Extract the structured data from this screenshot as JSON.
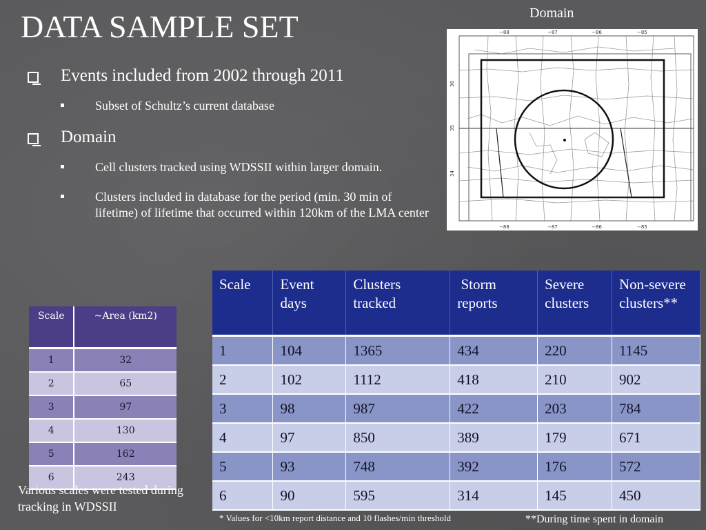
{
  "title": "DATA SAMPLE SET",
  "bullets": {
    "b1": "Events included from 2002 through 2011",
    "b1_sub": "Subset of Schultz’s current database",
    "b2": "Domain",
    "b2_sub1": "Cell clusters tracked using WDSSII within larger domain.",
    "b2_sub2": "Clusters included in database for the period (min. 30 min of lifetime) of  lifetime that occurred within 120km of the LMA center"
  },
  "map": {
    "caption": "Domain",
    "lon_ticks": [
      "−88",
      "−87",
      "−86",
      "−85"
    ],
    "lat_ticks": [
      "36",
      "35",
      "34"
    ]
  },
  "scale_table": {
    "headers": [
      "Scale",
      "~Area (km2)"
    ],
    "rows": [
      [
        "1",
        "32"
      ],
      [
        "2",
        "65"
      ],
      [
        "3",
        "97"
      ],
      [
        "4",
        "130"
      ],
      [
        "5",
        "162"
      ],
      [
        "6",
        "243"
      ]
    ],
    "note": "Various scales were tested during tracking in WDSSII"
  },
  "stats_table": {
    "headers": [
      "Scale",
      "Event days",
      "Clusters tracked",
      " Storm reports",
      "Severe clusters",
      "Non-severe clusters**"
    ],
    "rows": [
      [
        "1",
        "104",
        "1365",
        "434",
        "220",
        "1145"
      ],
      [
        "2",
        "102",
        "1112",
        "418",
        "210",
        "902"
      ],
      [
        "3",
        "98",
        "987",
        "422",
        "203",
        "784"
      ],
      [
        "4",
        "97",
        "850",
        "389",
        "179",
        "671"
      ],
      [
        "5",
        "93",
        "748",
        "392",
        "176",
        "572"
      ],
      [
        "6",
        "90",
        "595",
        "314",
        "145",
        "450"
      ]
    ]
  },
  "footnotes": {
    "f1": "* Values for <10km report distance and 10 flashes/min threshold",
    "f2": "**During time spent in domain"
  },
  "colors": {
    "background": "#5a5a5c",
    "stats_header": "#1d2d8d",
    "stats_odd": "#8995c7",
    "stats_even": "#c8cde8",
    "scale_header": "#4b3d86",
    "scale_odd": "#8a82b7",
    "scale_even": "#c9c5e0"
  }
}
